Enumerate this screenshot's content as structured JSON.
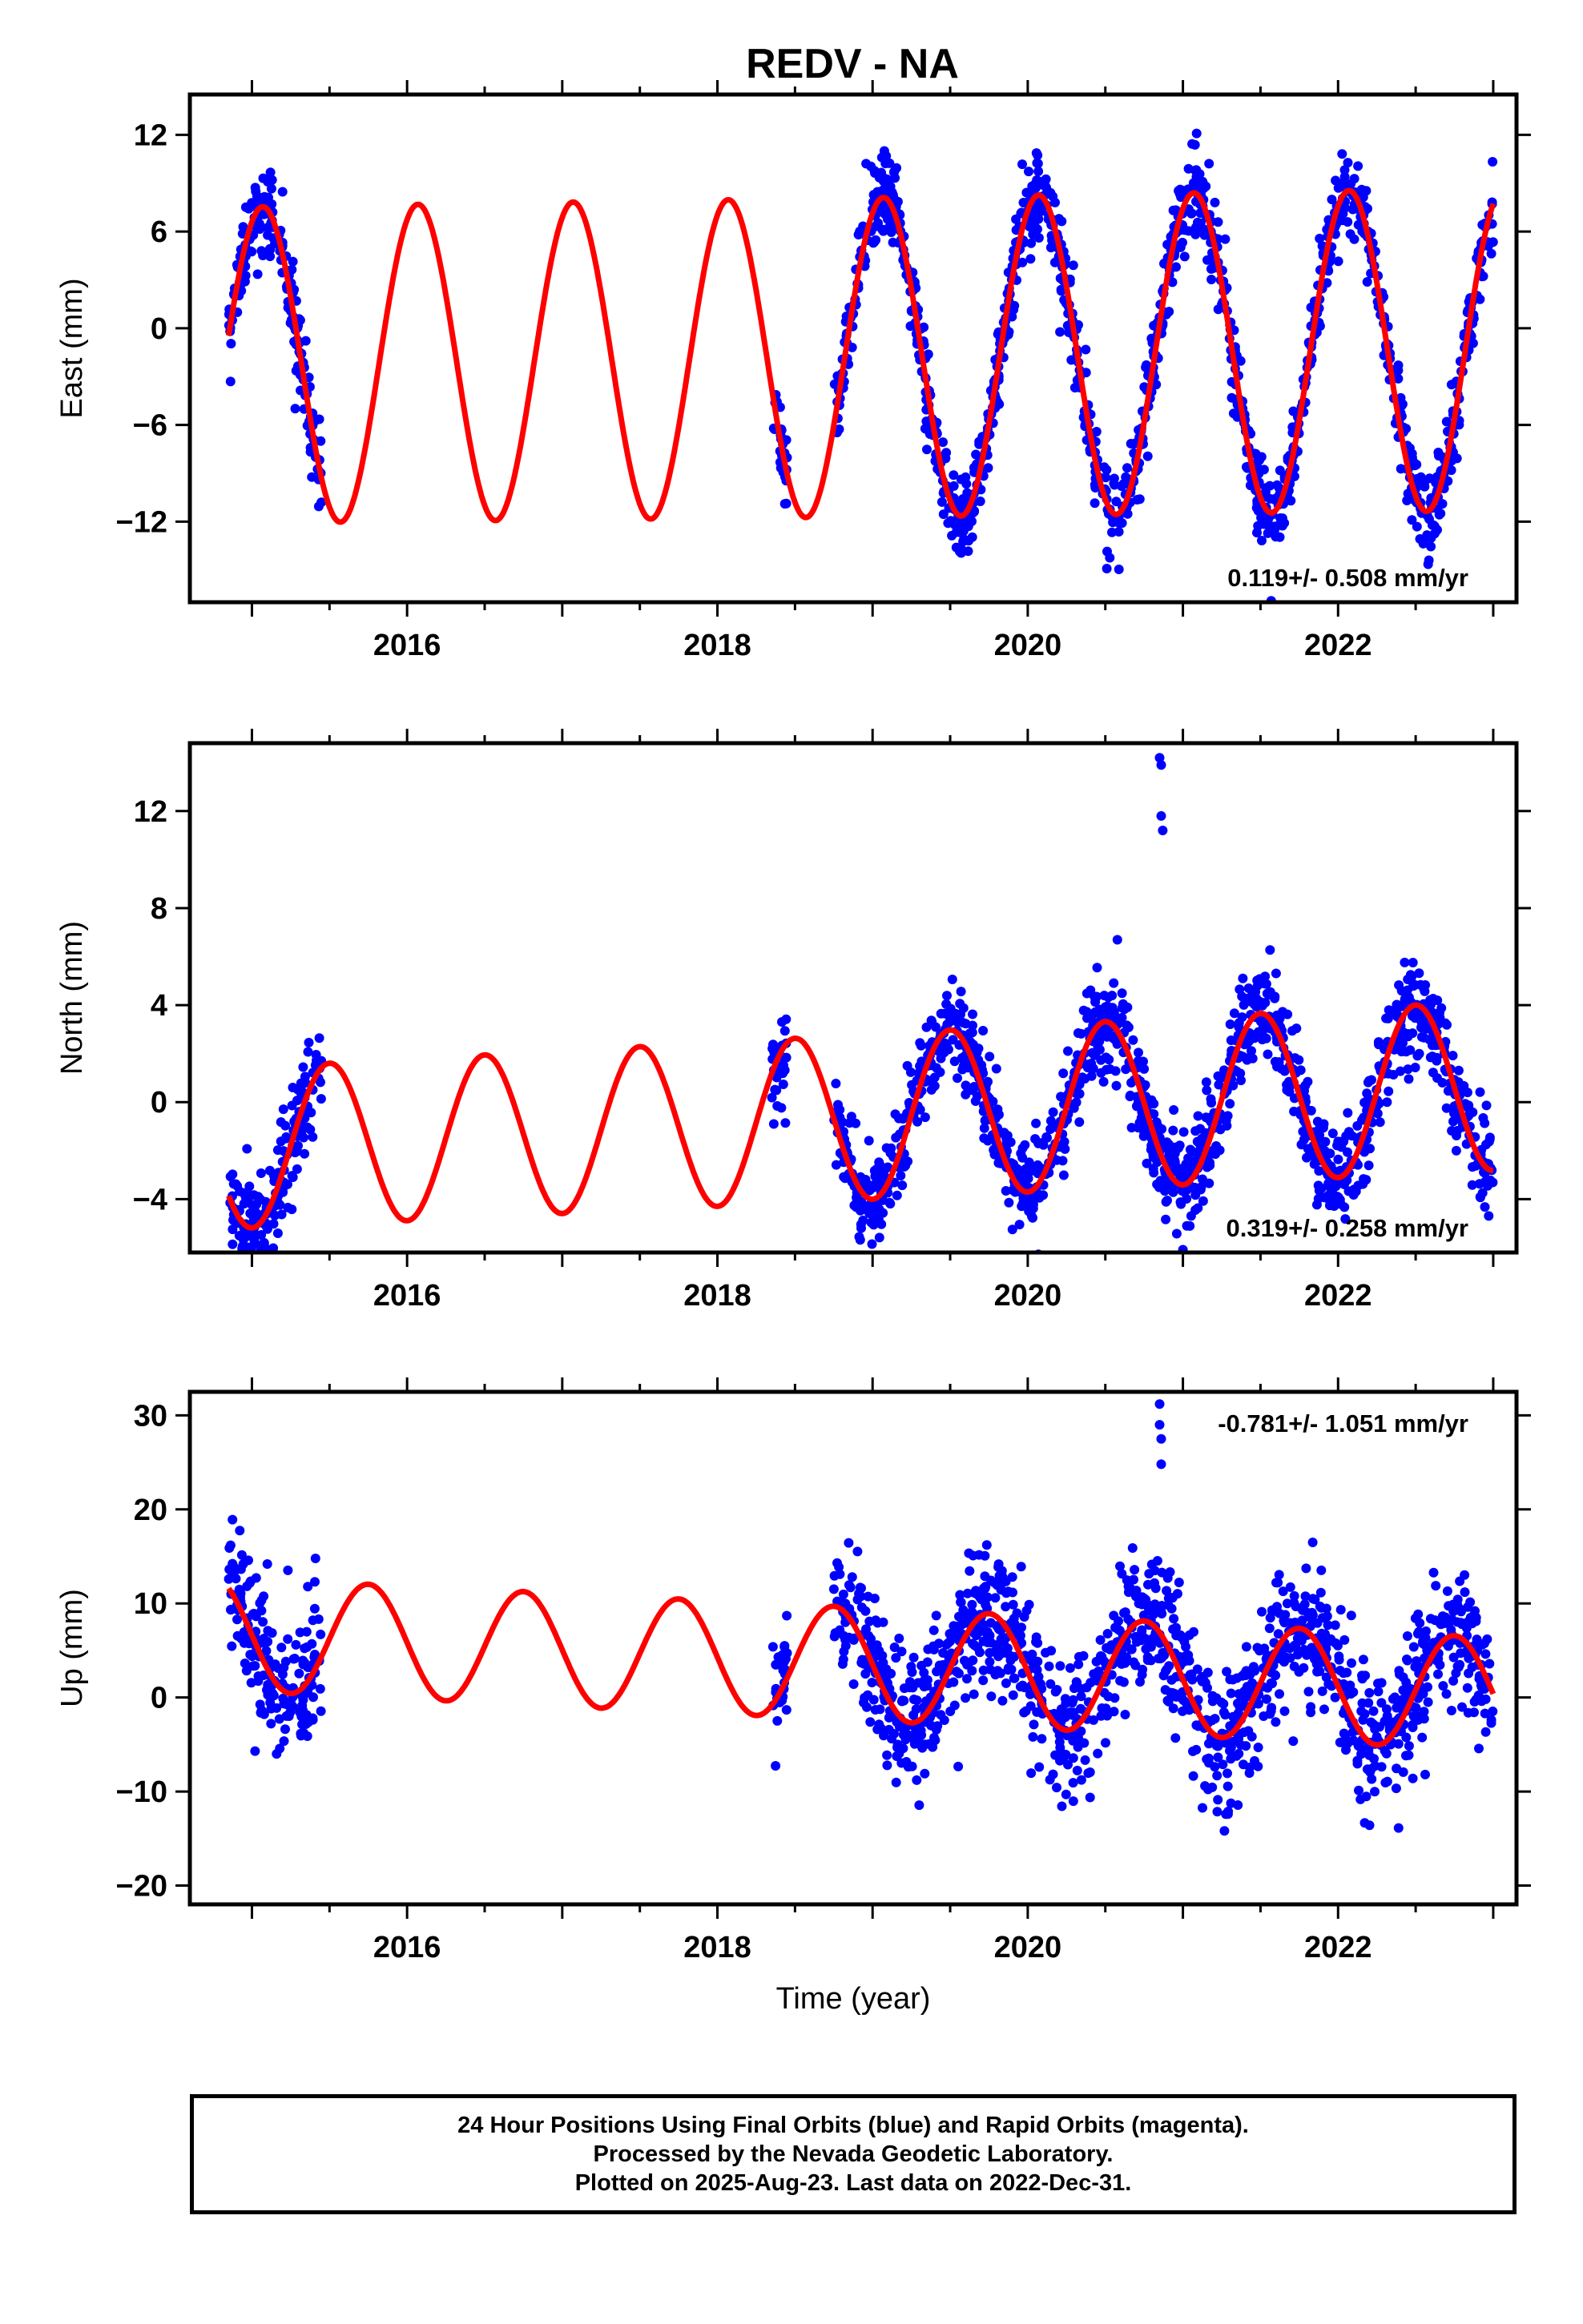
{
  "title": "REDV - NA",
  "caption": [
    "24 Hour Positions Using Final Orbits (blue) and Rapid Orbits (magenta).",
    "Processed by the Nevada Geodetic Laboratory.",
    "Plotted on 2025-Aug-23. Last data on 2022-Dec-31."
  ],
  "colors": {
    "points": "#0000ff",
    "fit": "#ff0000",
    "frame": "#000000"
  },
  "chart_data": [
    {
      "type": "scatter",
      "ylabel": "East (mm)",
      "xlabel": "",
      "xlim": [
        2014.6,
        2023.15
      ],
      "ylim": [
        -17,
        14.5
      ],
      "xticks": [
        2016,
        2018,
        2020,
        2022
      ],
      "yticks": [
        -12,
        -6,
        0,
        6,
        12
      ],
      "ytick_labels": [
        "−12",
        "−6",
        "0",
        "6",
        "12"
      ],
      "annotation": "0.119+/- 0.508 mm/yr",
      "annotation_position": "bottom-right",
      "fit": {
        "offset": -1.8,
        "rate": 0.119,
        "amp_start": 9.8,
        "amp_end": 10.0,
        "phase_peak": 0.07
      },
      "segments": [
        [
          2014.85,
          2015.45
        ],
        [
          2018.35,
          2018.45
        ],
        [
          2018.75,
          2023.0
        ]
      ],
      "scatter_sd": 1.3,
      "points_per_year": 300,
      "series": [
        {
          "name": "Final Orbits",
          "color": "#0000ff",
          "kind": "points"
        },
        {
          "name": "Fit",
          "color": "#ff0000",
          "kind": "line"
        }
      ]
    },
    {
      "type": "scatter",
      "ylabel": "North (mm)",
      "xlabel": "",
      "xlim": [
        2014.6,
        2023.15
      ],
      "ylim": [
        -6.2,
        14.8
      ],
      "xticks": [
        2016,
        2018,
        2020,
        2022
      ],
      "yticks": [
        -4,
        0,
        4,
        8,
        12
      ],
      "ytick_labels": [
        "−4",
        "0",
        "4",
        "8",
        "12"
      ],
      "annotation": "0.319+/- 0.258 mm/yr",
      "annotation_position": "bottom-right",
      "fit": {
        "offset": -0.6,
        "rate": 0.319,
        "amp_start": 3.3,
        "amp_end": 3.5,
        "phase_peak": 0.5
      },
      "segments": [
        [
          2014.85,
          2015.45
        ],
        [
          2018.35,
          2018.45
        ],
        [
          2018.75,
          2023.0
        ]
      ],
      "scatter_sd": 1.0,
      "points_per_year": 300,
      "outliers": [
        [
          2020.85,
          14.2
        ],
        [
          2020.86,
          13.9
        ],
        [
          2020.86,
          11.8
        ],
        [
          2020.87,
          11.2
        ]
      ],
      "series": [
        {
          "name": "Final Orbits",
          "color": "#0000ff",
          "kind": "points"
        },
        {
          "name": "Fit",
          "color": "#ff0000",
          "kind": "line"
        }
      ]
    },
    {
      "type": "scatter",
      "ylabel": "Up (mm)",
      "xlabel": "Time (year)",
      "xlim": [
        2014.6,
        2023.15
      ],
      "ylim": [
        -22,
        32.5
      ],
      "xticks": [
        2016,
        2018,
        2020,
        2022
      ],
      "yticks": [
        -20,
        -10,
        0,
        10,
        20,
        30
      ],
      "ytick_labels": [
        "−20",
        "−10",
        "0",
        "10",
        "20",
        "30"
      ],
      "annotation": "-0.781+/- 1.051 mm/yr",
      "annotation_position": "top-right",
      "fit": {
        "offset": 3.5,
        "rate": -0.781,
        "amp_start": 6.0,
        "amp_end": 6.0,
        "phase_peak": 0.75
      },
      "segments": [
        [
          2014.85,
          2015.45
        ],
        [
          2018.35,
          2018.45
        ],
        [
          2018.75,
          2023.0
        ]
      ],
      "scatter_sd": 3.6,
      "points_per_year": 300,
      "outliers": [
        [
          2020.85,
          31.2
        ],
        [
          2020.85,
          29.0
        ],
        [
          2020.86,
          27.5
        ],
        [
          2020.86,
          24.8
        ]
      ],
      "series": [
        {
          "name": "Final Orbits",
          "color": "#0000ff",
          "kind": "points"
        },
        {
          "name": "Fit",
          "color": "#ff0000",
          "kind": "line"
        }
      ]
    }
  ]
}
